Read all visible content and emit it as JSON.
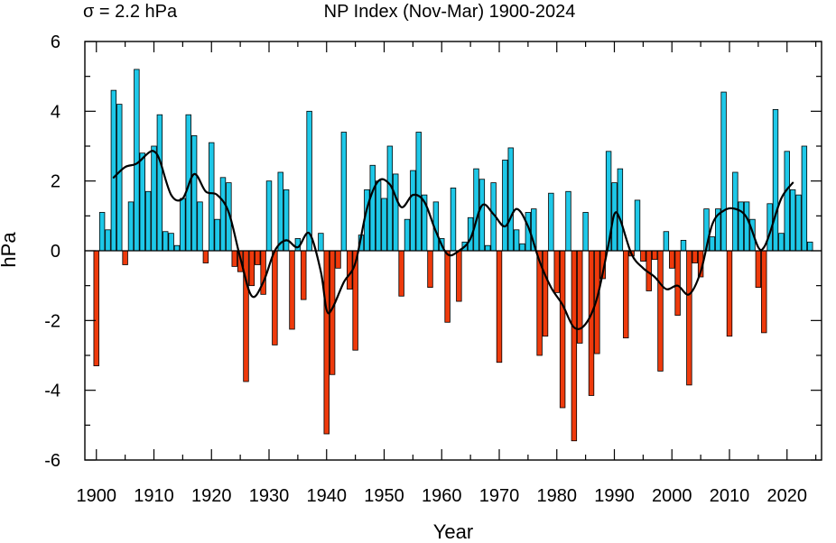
{
  "chart_data": {
    "type": "bar",
    "title": "NP Index (Nov-Mar) 1900-2024",
    "annotation": "σ = 2.2 hPa",
    "xlabel": "Year",
    "ylabel": "hPa",
    "xlim": [
      1898,
      2026
    ],
    "ylim": [
      -6,
      6
    ],
    "xticks": [
      1900,
      1910,
      1920,
      1930,
      1940,
      1950,
      1960,
      1970,
      1980,
      1990,
      2000,
      2010,
      2020
    ],
    "yticks": [
      -6,
      -4,
      -2,
      0,
      2,
      4,
      6
    ],
    "positive_color": "#1ec8e8",
    "negative_color": "#ee3a0c",
    "x": [
      1900,
      1901,
      1902,
      1903,
      1904,
      1905,
      1906,
      1907,
      1908,
      1909,
      1910,
      1911,
      1912,
      1913,
      1914,
      1915,
      1916,
      1917,
      1918,
      1919,
      1920,
      1921,
      1922,
      1923,
      1924,
      1925,
      1926,
      1927,
      1928,
      1929,
      1930,
      1931,
      1932,
      1933,
      1934,
      1935,
      1936,
      1937,
      1938,
      1939,
      1940,
      1941,
      1942,
      1943,
      1944,
      1945,
      1946,
      1947,
      1948,
      1949,
      1950,
      1951,
      1952,
      1953,
      1954,
      1955,
      1956,
      1957,
      1958,
      1959,
      1960,
      1961,
      1962,
      1963,
      1964,
      1965,
      1966,
      1967,
      1968,
      1969,
      1970,
      1971,
      1972,
      1973,
      1974,
      1975,
      1976,
      1977,
      1978,
      1979,
      1980,
      1981,
      1982,
      1983,
      1984,
      1985,
      1986,
      1987,
      1988,
      1989,
      1990,
      1991,
      1992,
      1993,
      1994,
      1995,
      1996,
      1997,
      1998,
      1999,
      2000,
      2001,
      2002,
      2003,
      2004,
      2005,
      2006,
      2007,
      2008,
      2009,
      2010,
      2011,
      2012,
      2013,
      2014,
      2015,
      2016,
      2017,
      2018,
      2019,
      2020,
      2021,
      2022,
      2023,
      2024
    ],
    "values": [
      -3.3,
      1.1,
      0.6,
      4.6,
      4.2,
      -0.4,
      1.4,
      5.2,
      2.8,
      1.7,
      3.0,
      3.9,
      0.55,
      0.5,
      0.15,
      1.5,
      3.9,
      3.3,
      1.4,
      -0.35,
      3.1,
      0.9,
      2.1,
      1.95,
      -0.45,
      -0.6,
      -3.75,
      -1.0,
      -0.4,
      -1.25,
      2.0,
      -2.7,
      2.25,
      1.75,
      -2.25,
      0.35,
      -1.4,
      4.0,
      0.0,
      0.5,
      -5.25,
      -3.55,
      -0.5,
      3.4,
      -1.1,
      -2.85,
      0.45,
      1.75,
      2.45,
      2.0,
      1.5,
      3.0,
      2.2,
      -1.3,
      0.9,
      2.3,
      3.4,
      1.6,
      -1.05,
      1.4,
      0.35,
      -2.05,
      1.8,
      -1.45,
      0.25,
      0.95,
      2.35,
      2.05,
      0.15,
      1.95,
      -3.2,
      2.6,
      2.95,
      0.6,
      0.2,
      1.1,
      1.2,
      -3.0,
      -2.45,
      1.65,
      -1.2,
      -4.5,
      1.7,
      -5.45,
      -2.65,
      1.1,
      -4.15,
      -2.95,
      -0.8,
      2.85,
      1.95,
      2.35,
      -2.5,
      -0.15,
      1.45,
      -0.3,
      -1.15,
      -0.25,
      -3.45,
      0.55,
      -0.5,
      -1.85,
      0.3,
      -3.85,
      -0.35,
      -0.75,
      1.2,
      0.4,
      1.2,
      4.55,
      -2.45,
      2.25,
      1.4,
      1.4,
      0.9,
      -1.05,
      -2.35,
      1.35,
      4.05,
      0.5,
      2.85,
      1.75,
      1.6,
      3.0,
      0.25
    ],
    "smooth_x": [
      1903,
      1905,
      1907,
      1909,
      1910,
      1911,
      1913,
      1915,
      1917,
      1919,
      1921,
      1923,
      1925,
      1927,
      1929,
      1931,
      1933,
      1935,
      1937,
      1939,
      1940,
      1941,
      1943,
      1945,
      1947,
      1949,
      1951,
      1953,
      1955,
      1957,
      1959,
      1961,
      1963,
      1965,
      1967,
      1969,
      1971,
      1973,
      1975,
      1977,
      1979,
      1981,
      1983,
      1985,
      1987,
      1989,
      1990,
      1991,
      1993,
      1995,
      1997,
      1999,
      2001,
      2003,
      2005,
      2007,
      2009,
      2011,
      2013,
      2015,
      2016,
      2017,
      2019,
      2021
    ],
    "smooth_y": [
      2.1,
      2.4,
      2.5,
      2.8,
      2.85,
      2.6,
      1.6,
      1.5,
      2.2,
      1.7,
      1.6,
      1.1,
      -0.2,
      -1.3,
      -0.9,
      0.0,
      0.3,
      0.1,
      0.5,
      -0.6,
      -1.7,
      -1.65,
      -0.9,
      -0.35,
      1.2,
      2.0,
      1.9,
      1.25,
      1.6,
      1.4,
      0.55,
      -0.1,
      0.0,
      0.35,
      1.3,
      1.05,
      0.7,
      1.2,
      0.7,
      -0.3,
      -1.05,
      -1.55,
      -2.2,
      -2.1,
      -1.35,
      0.2,
      1.05,
      0.9,
      -0.1,
      -0.5,
      -0.75,
      -1.1,
      -1.0,
      -1.25,
      -0.6,
      0.75,
      1.15,
      1.2,
      0.95,
      0.1,
      0.1,
      0.5,
      1.5,
      1.95
    ]
  }
}
